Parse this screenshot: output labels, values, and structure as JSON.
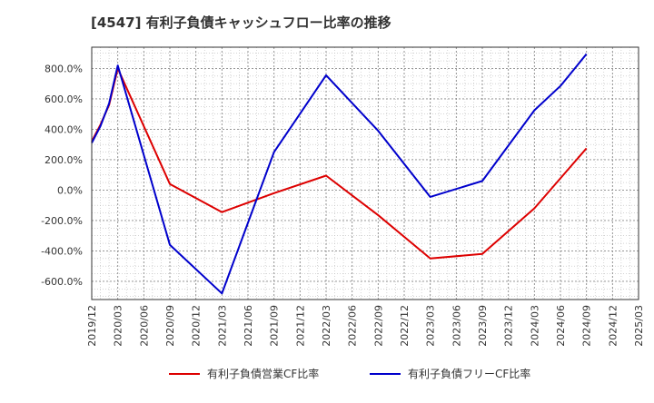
{
  "chart_data": {
    "type": "line",
    "title": "[4547]  有利子負債キャッシュフロー比率の推移",
    "x": [
      "2019/12",
      "2020/03",
      "2020/06",
      "2020/09",
      "2020/12",
      "2021/03",
      "2021/06",
      "2021/09",
      "2021/12",
      "2022/03",
      "2022/06",
      "2022/09",
      "2022/12",
      "2023/03",
      "2023/06",
      "2023/09",
      "2023/12",
      "2024/03",
      "2024/06",
      "2024/09",
      "2024/12",
      "2025/03"
    ],
    "y_ticks": [
      "800.0%",
      "600.0%",
      "400.0%",
      "200.0%",
      "0.0%",
      "-200.0%",
      "-400.0%",
      "-600.0%"
    ],
    "y_tick_values": [
      800,
      600,
      400,
      200,
      0,
      -200,
      -400,
      -600
    ],
    "ylim": [
      -720,
      940
    ],
    "grid": true,
    "legend_position": "bottom",
    "series": [
      {
        "name": "有利子負債営業CF比率",
        "color": "#dd0000",
        "points": [
          {
            "x": "2019/12",
            "y": 320
          },
          {
            "x": "2020/01",
            "y": 430
          },
          {
            "x": "2020/02",
            "y": 560
          },
          {
            "x": "2020/03",
            "y": 800
          },
          {
            "x": "2020/09",
            "y": 40
          },
          {
            "x": "2021/03",
            "y": -145
          },
          {
            "x": "2021/09",
            "y": -20
          },
          {
            "x": "2022/03",
            "y": 95
          },
          {
            "x": "2022/09",
            "y": -165
          },
          {
            "x": "2023/03",
            "y": -450
          },
          {
            "x": "2023/09",
            "y": -420
          },
          {
            "x": "2024/03",
            "y": -120
          },
          {
            "x": "2024/09",
            "y": 275
          }
        ]
      },
      {
        "name": "有利子負債フリーCF比率",
        "color": "#0000cc",
        "points": [
          {
            "x": "2019/12",
            "y": 310
          },
          {
            "x": "2020/01",
            "y": 420
          },
          {
            "x": "2020/02",
            "y": 570
          },
          {
            "x": "2020/03",
            "y": 820
          },
          {
            "x": "2020/09",
            "y": -360
          },
          {
            "x": "2021/03",
            "y": -680
          },
          {
            "x": "2021/09",
            "y": 250
          },
          {
            "x": "2022/03",
            "y": 755
          },
          {
            "x": "2022/09",
            "y": 390
          },
          {
            "x": "2023/03",
            "y": -45
          },
          {
            "x": "2023/09",
            "y": 60
          },
          {
            "x": "2024/03",
            "y": 525
          },
          {
            "x": "2024/06",
            "y": 685
          },
          {
            "x": "2024/09",
            "y": 895
          }
        ]
      }
    ]
  }
}
